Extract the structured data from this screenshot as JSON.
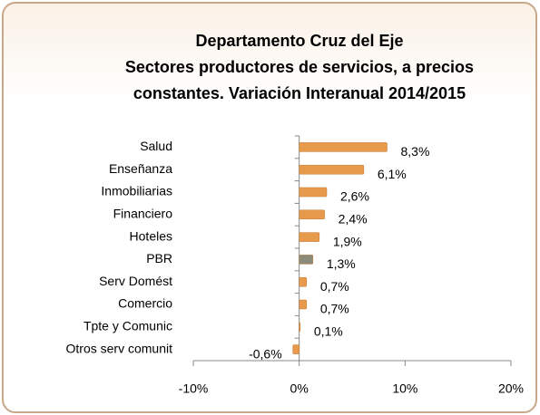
{
  "chart_data": {
    "type": "bar",
    "orientation": "horizontal",
    "title": [
      "Departamento Cruz del Eje",
      "Sectores productores de servicios, a precios",
      "constantes. Variación Interanual 2014/2015"
    ],
    "categories": [
      "Salud",
      "Enseñanza",
      "Inmobiliarias",
      "Financiero",
      "Hoteles",
      "PBR",
      "Serv Domést",
      "Comercio",
      "Tpte y Comunic",
      "Otros serv comunit"
    ],
    "values": [
      8.3,
      6.1,
      2.6,
      2.4,
      1.9,
      1.3,
      0.7,
      0.7,
      0.1,
      -0.6
    ],
    "value_labels": [
      "8,3%",
      "6,1%",
      "2,6%",
      "2,4%",
      "1,9%",
      "1,3%",
      "0,7%",
      "0,7%",
      "0,1%",
      "-0,6%"
    ],
    "colors": [
      "#e89a4c",
      "#e89a4c",
      "#e89a4c",
      "#e89a4c",
      "#e89a4c",
      "#8c8a78",
      "#e89a4c",
      "#e89a4c",
      "#e89a4c",
      "#e89a4c"
    ],
    "xlim": [
      -10,
      20
    ],
    "xticks": [
      {
        "value": -10,
        "label": "-10%"
      },
      {
        "value": 0,
        "label": "0%"
      },
      {
        "value": 10,
        "label": "10%"
      },
      {
        "value": 20,
        "label": "20%"
      }
    ],
    "grid": false
  }
}
